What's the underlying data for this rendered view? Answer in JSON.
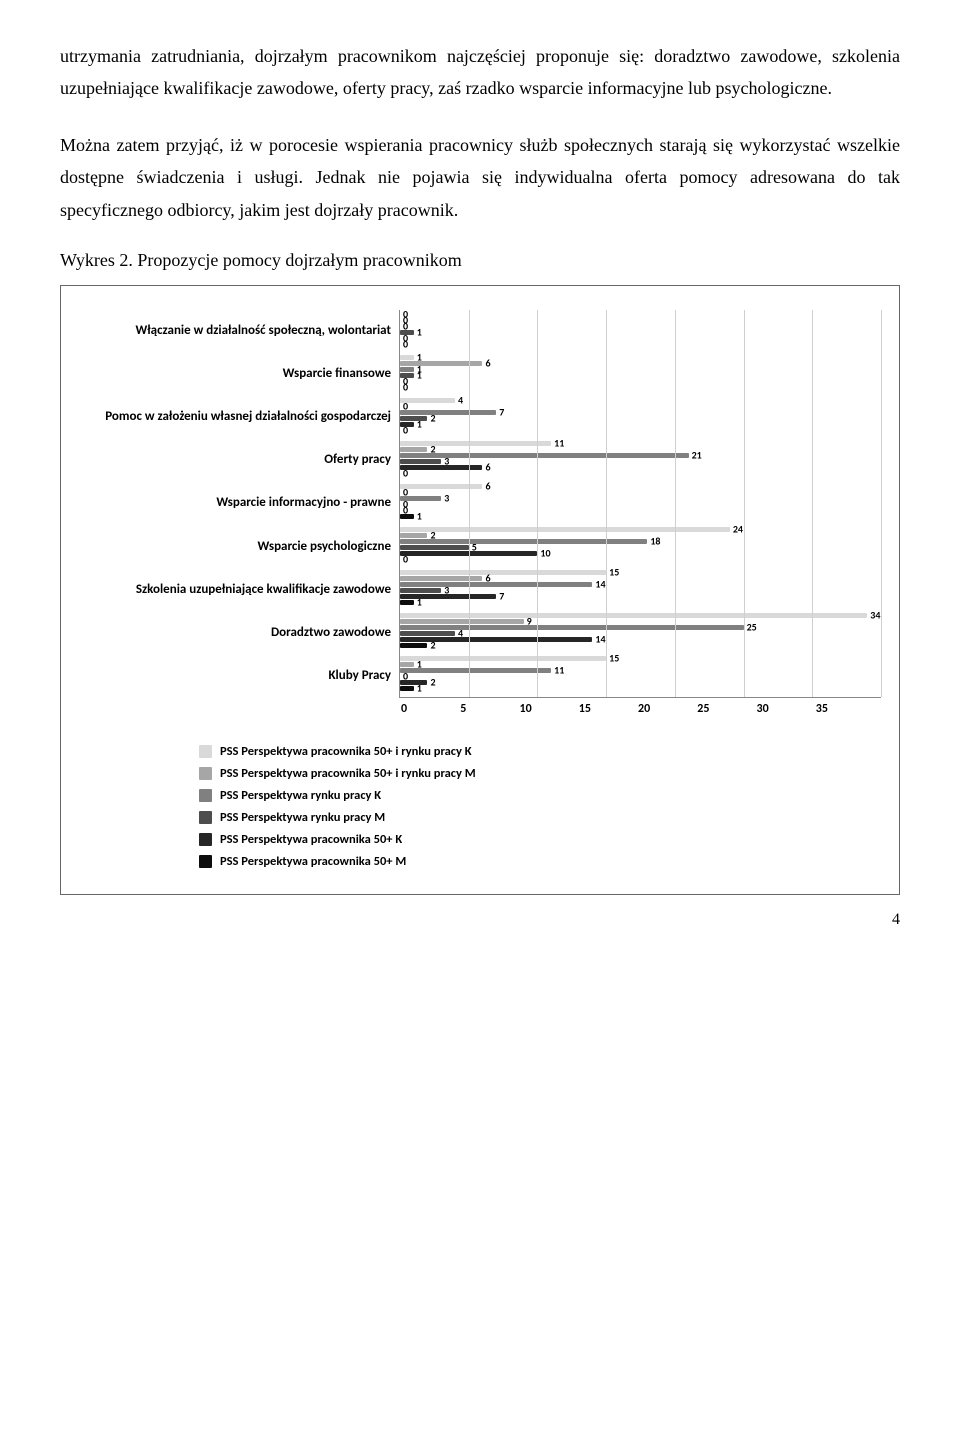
{
  "paragraphs": {
    "p1": "utrzymania zatrudniania, dojrzałym pracownikom najczęściej proponuje się: doradztwo zawodowe, szkolenia uzupełniające kwalifikacje zawodowe, oferty pracy, zaś rzadko wsparcie informacyjne lub psychologiczne.",
    "p2": "Można zatem przyjąć, iż w porocesie wspierania pracownicy służb społecznych starają się wykorzystać wszelkie dostępne świadczenia i usługi. Jednak nie pojawia się indywidualna oferta pomocy adresowana do tak specyficznego odbiorcy, jakim jest dojrzały pracownik."
  },
  "chart": {
    "title": "Wykres 2. Propozycje pomocy dojrzałym pracownikom",
    "xlim": [
      0,
      35
    ],
    "xtick_step": 5,
    "xticks": [
      0,
      5,
      10,
      15,
      20,
      25,
      30,
      35
    ],
    "grid_color": "#cfcfcf",
    "background": "#ffffff",
    "series": [
      {
        "key": "K50RP",
        "label": "PSS Perspektywa pracownika 50+ i rynku pracy K",
        "color": "#d9d9d9"
      },
      {
        "key": "M50RP",
        "label": "PSS Perspektywa pracownika 50+ i rynku pracy M",
        "color": "#a6a6a6"
      },
      {
        "key": "KRP",
        "label": "PSS Perspektywa rynku pracy K",
        "color": "#808080"
      },
      {
        "key": "MRP",
        "label": "PSS Perspektywa rynku pracy M",
        "color": "#4d4d4d"
      },
      {
        "key": "K50",
        "label": "PSS Perspektywa pracownika 50+ K",
        "color": "#262626"
      },
      {
        "key": "M50",
        "label": "PSS Perspektywa pracownika 50+ M",
        "color": "#0d0d0d"
      }
    ],
    "categories": [
      {
        "label": "Włączanie w działalność społeczną, wolontariat",
        "K50RP": 0,
        "M50RP": 0,
        "KRP": 0,
        "MRP": 1,
        "K50": 0,
        "M50": 0
      },
      {
        "label": "Wsparcie finansowe",
        "K50RP": 1,
        "M50RP": 6,
        "KRP": 1,
        "MRP": 1,
        "K50": 0,
        "M50": 0
      },
      {
        "label": "Pomoc w założeniu własnej działalności gospodarczej",
        "K50RP": 4,
        "M50RP": 0,
        "KRP": 7,
        "MRP": 2,
        "K50": 1,
        "M50": 0
      },
      {
        "label": "Oferty pracy",
        "K50RP": 11,
        "M50RP": 2,
        "KRP": 21,
        "MRP": 3,
        "K50": 6,
        "M50": 0
      },
      {
        "label": "Wsparcie informacyjno - prawne",
        "K50RP": 6,
        "M50RP": 0,
        "KRP": 3,
        "MRP": 0,
        "K50": 0,
        "M50": 1
      },
      {
        "label": "Wsparcie psychologiczne",
        "K50RP": 24,
        "M50RP": 2,
        "KRP": 18,
        "MRP": 5,
        "K50": 10,
        "M50": 0
      },
      {
        "label": "Szkolenia uzupełniające kwalifikacje zawodowe",
        "K50RP": 15,
        "M50RP": 6,
        "KRP": 14,
        "MRP": 3,
        "K50": 7,
        "M50": 1
      },
      {
        "label": "Doradztwo zawodowe",
        "K50RP": 34,
        "M50RP": 9,
        "KRP": 25,
        "MRP": 4,
        "K50": 14,
        "M50": 2
      },
      {
        "label": "Kluby Pracy",
        "K50RP": 15,
        "M50RP": 1,
        "KRP": 11,
        "MRP": 0,
        "K50": 2,
        "M50": 1
      }
    ]
  },
  "page_number": "4"
}
